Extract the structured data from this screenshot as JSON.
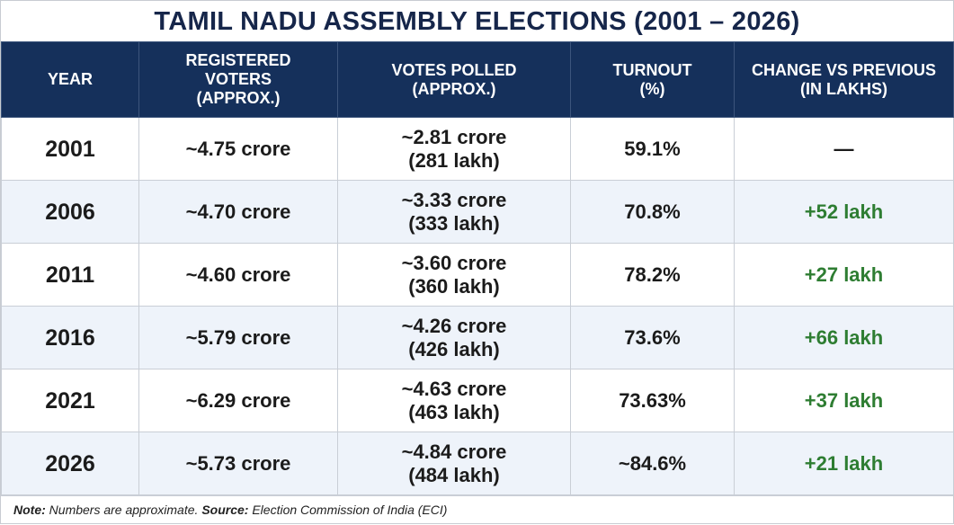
{
  "header": {
    "title": "TAMIL NADU ASSEMBLY ELECTIONS (2001 – 2026)"
  },
  "table": {
    "columns": [
      [
        "YEAR"
      ],
      [
        "REGISTERED",
        "VOTERS",
        "(APPROX.)"
      ],
      [
        "VOTES POLLED",
        "(APPROX.)"
      ],
      [
        "TURNOUT",
        "(%)"
      ],
      [
        "CHANGE VS PREVIOUS",
        "(IN LAKHS)"
      ]
    ],
    "rows": [
      [
        "2001",
        "~4.75 crore",
        [
          "~2.81 crore",
          "(281 lakh)"
        ],
        "59.1%",
        "—"
      ],
      [
        "2006",
        "~4.70 crore",
        [
          "~3.33 crore",
          "(333 lakh)"
        ],
        "70.8%",
        "+52 lakh"
      ],
      [
        "2011",
        "~4.60 crore",
        [
          "~3.60 crore",
          "(360 lakh)"
        ],
        "78.2%",
        "+27 lakh"
      ],
      [
        "2016",
        "~5.79 crore",
        [
          "~4.26 crore",
          "(426 lakh)"
        ],
        "73.6%",
        "+66 lakh"
      ],
      [
        "2021",
        "~6.29 crore",
        [
          "~4.63 crore",
          "(463 lakh)"
        ],
        "73.63%",
        "+37 lakh"
      ],
      [
        "2026",
        "~5.73 crore",
        [
          "~4.84 crore",
          "(484 lakh)"
        ],
        "~84.6%",
        "+21 lakh"
      ]
    ]
  },
  "note": {
    "label": "Note:",
    "text": "Numbers are approximate.",
    "source_label": "Source:",
    "source": "Election Commission of India (ECI)"
  }
}
